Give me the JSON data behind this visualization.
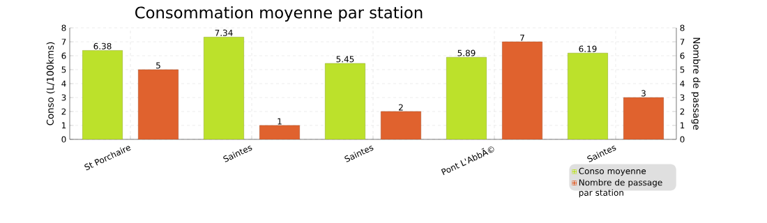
{
  "chart_data": {
    "type": "bar",
    "title": "Consommation moyenne par station",
    "ylabel": "Conso (L/100kms)",
    "y2label": "Nombre de passage",
    "categories": [
      "St Porchaire",
      "Saintes",
      "Saintes",
      "Pont L'AbbÃ©",
      "Saintes"
    ],
    "series": [
      {
        "name": "Conso moyenne",
        "color": "#bce12b",
        "values": [
          6.38,
          7.34,
          5.45,
          5.89,
          6.19
        ]
      },
      {
        "name": "Nombre de passage par station",
        "color": "#e0622e",
        "values": [
          5,
          1,
          2,
          7,
          3
        ],
        "axis": "y2"
      }
    ],
    "ylim": [
      0,
      8
    ],
    "yticks": [
      0,
      1,
      2,
      3,
      4,
      5,
      6,
      7,
      8
    ],
    "y2lim": [
      0,
      8
    ],
    "y2ticks": [
      0,
      1,
      2,
      3,
      4,
      5,
      6,
      7,
      8
    ],
    "data_labels": true,
    "grid": true,
    "legend": "bottom right"
  }
}
